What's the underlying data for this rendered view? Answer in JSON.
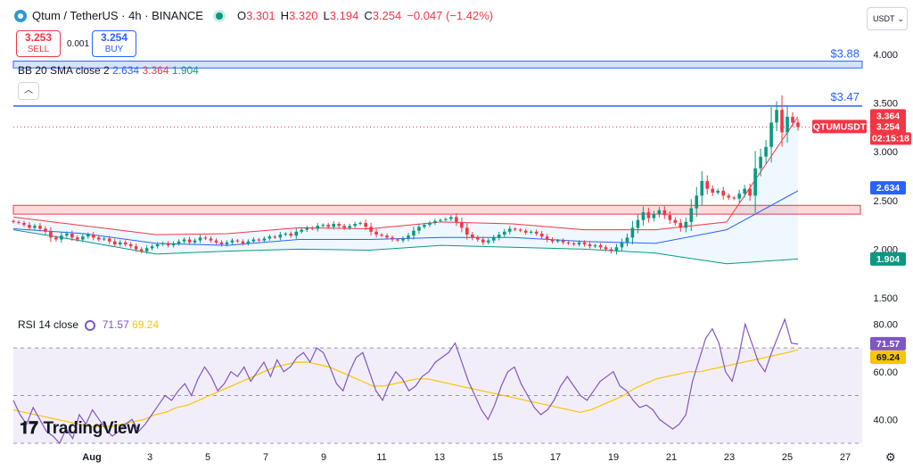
{
  "header": {
    "symbol": "Qtum / TetherUS · 4h · BINANCE",
    "o_label": "O",
    "o_value": "3.301",
    "h_label": "H",
    "h_value": "3.320",
    "l_label": "L",
    "l_value": "3.194",
    "c_label": "C",
    "c_value": "3.254",
    "change": "−0.047 (−1.42%)"
  },
  "trade": {
    "sell_price": "3.253",
    "sell_label": "SELL",
    "spread": "0.001",
    "buy_price": "3.254",
    "buy_label": "BUY"
  },
  "currency_button": "USDT",
  "bb_legend": {
    "name": "BB 20 SMA close 2",
    "basis": "2.634",
    "upper": "3.364",
    "lower": "1.904"
  },
  "rsi_legend": {
    "name": "RSI 14 close",
    "rsi": "71.57",
    "ma": "69.24"
  },
  "watermark": "TradingView",
  "colors": {
    "up": "#089981",
    "down": "#f23645",
    "bb_basis": "#2962ff",
    "bb_upper": "#f23645",
    "bb_lower": "#089981",
    "rsi": "#7e57c2",
    "rsi_ma": "#f7c600",
    "level_line": "#2962ff"
  },
  "chart_data": [
    {
      "type": "candlestick",
      "symbol": "QTUMUSDT",
      "ylim": [
        1.4,
        4.1
      ],
      "y_ticks": [
        "4.000",
        "3.500",
        "3.000",
        "2.500",
        "2.000",
        "1.500"
      ],
      "x_ticks": [
        "Aug",
        "3",
        "5",
        "7",
        "9",
        "11",
        "13",
        "15",
        "17",
        "19",
        "21",
        "23",
        "25",
        "27"
      ],
      "horizontal_levels": [
        {
          "label": "$3.88",
          "value": 3.88,
          "band": [
            3.86,
            3.93
          ]
        },
        {
          "label": "$3.47",
          "value": 3.47
        }
      ],
      "zone": [
        2.36,
        2.45
      ],
      "price_labels": [
        {
          "text": "3.364",
          "value": 3.364,
          "color": "#f23645"
        },
        {
          "text": "QTUMUSDT",
          "value": 3.254,
          "color": "#f23645"
        },
        {
          "text": "3.254",
          "value": 3.254,
          "color": "#f23645"
        },
        {
          "text": "02:15:18",
          "value": 3.254,
          "color": "#f23645"
        },
        {
          "text": "2.634",
          "value": 2.634,
          "color": "#2962ff"
        },
        {
          "text": "1.904",
          "value": 1.904,
          "color": "#089981"
        }
      ],
      "close_series": [
        2.28,
        2.27,
        2.25,
        2.22,
        2.24,
        2.21,
        2.18,
        2.12,
        2.1,
        2.14,
        2.16,
        2.12,
        2.1,
        2.13,
        2.15,
        2.12,
        2.1,
        2.11,
        2.08,
        2.05,
        2.07,
        2.05,
        2.03,
        2.0,
        1.98,
        2.01,
        2.03,
        2.05,
        2.06,
        2.04,
        2.06,
        2.08,
        2.1,
        2.07,
        2.09,
        2.12,
        2.11,
        2.09,
        2.07,
        2.05,
        2.07,
        2.09,
        2.08,
        2.06,
        2.08,
        2.1,
        2.09,
        2.11,
        2.13,
        2.12,
        2.15,
        2.16,
        2.14,
        2.18,
        2.2,
        2.22,
        2.21,
        2.24,
        2.25,
        2.23,
        2.26,
        2.24,
        2.22,
        2.24,
        2.26,
        2.27,
        2.23,
        2.18,
        2.15,
        2.14,
        2.12,
        2.1,
        2.09,
        2.11,
        2.14,
        2.19,
        2.23,
        2.25,
        2.27,
        2.29,
        2.3,
        2.31,
        2.33,
        2.28,
        2.22,
        2.15,
        2.12,
        2.1,
        2.07,
        2.09,
        2.12,
        2.15,
        2.18,
        2.21,
        2.2,
        2.19,
        2.17,
        2.18,
        2.16,
        2.13,
        2.1,
        2.08,
        2.09,
        2.07,
        2.06,
        2.05,
        2.07,
        2.05,
        2.03,
        2.04,
        2.02,
        2.0,
        1.98,
        2.02,
        2.07,
        2.12,
        2.22,
        2.3,
        2.38,
        2.32,
        2.36,
        2.4,
        2.35,
        2.3,
        2.27,
        2.22,
        2.28,
        2.42,
        2.55,
        2.7,
        2.62,
        2.58,
        2.6,
        2.55,
        2.53,
        2.52,
        2.57,
        2.62,
        2.55,
        2.83,
        2.95,
        3.05,
        3.3,
        3.43,
        3.2,
        3.36,
        3.3,
        3.254
      ],
      "bb_basis": [
        2.21,
        2.16,
        2.06,
        2.04,
        2.1,
        2.1,
        2.12,
        2.12,
        2.08,
        2.06,
        2.2,
        2.6
      ],
      "bb_upper": [
        2.33,
        2.24,
        2.15,
        2.16,
        2.22,
        2.21,
        2.28,
        2.26,
        2.2,
        2.2,
        2.28,
        3.36
      ],
      "bb_lower": [
        2.2,
        2.08,
        1.95,
        1.98,
        2.0,
        1.99,
        2.04,
        2.02,
        2.0,
        1.96,
        1.85,
        1.9
      ]
    },
    {
      "type": "line",
      "title": "RSI 14 close",
      "ylim": [
        30,
        85
      ],
      "y_ticks": [
        "80.00",
        "60.00",
        "40.00"
      ],
      "bands": [
        30,
        50,
        70
      ],
      "value_labels": [
        {
          "text": "71.57",
          "value": 71.57,
          "color": "#7e57c2"
        },
        {
          "text": "69.24",
          "value": 69.24,
          "color": "#f7c600"
        }
      ],
      "series": [
        {
          "name": "RSI",
          "values": [
            48,
            42,
            38,
            45,
            40,
            35,
            33,
            30,
            36,
            32,
            42,
            38,
            44,
            40,
            36,
            33,
            35,
            38,
            40,
            35,
            38,
            42,
            46,
            50,
            48,
            52,
            55,
            50,
            57,
            62,
            58,
            52,
            55,
            60,
            58,
            62,
            56,
            60,
            64,
            58,
            65,
            60,
            62,
            66,
            68,
            64,
            70,
            68,
            62,
            55,
            52,
            60,
            66,
            68,
            60,
            52,
            48,
            55,
            60,
            57,
            52,
            54,
            58,
            60,
            64,
            66,
            68,
            72,
            64,
            56,
            50,
            44,
            40,
            46,
            54,
            60,
            62,
            55,
            50,
            45,
            42,
            44,
            48,
            54,
            58,
            54,
            50,
            48,
            52,
            56,
            58,
            60,
            54,
            52,
            48,
            45,
            46,
            44,
            40,
            38,
            36,
            38,
            42,
            56,
            65,
            74,
            78,
            72,
            60,
            56,
            66,
            80,
            72,
            64,
            60,
            68,
            75,
            82,
            72,
            71.57
          ]
        },
        {
          "name": "RSI MA",
          "values": [
            44,
            43,
            42,
            41,
            40,
            39,
            38,
            37,
            37,
            37,
            38,
            39,
            40,
            42,
            43,
            45,
            46,
            48,
            50,
            52,
            54,
            56,
            58,
            60,
            62,
            63,
            64,
            64,
            63,
            62,
            60,
            58,
            56,
            54,
            54,
            55,
            56,
            57,
            57,
            56,
            55,
            54,
            53,
            52,
            51,
            50,
            49,
            48,
            47,
            46,
            45,
            44,
            43,
            44,
            46,
            48,
            50,
            53,
            55,
            57,
            58,
            59,
            60,
            60,
            61,
            62,
            63,
            64,
            65,
            66,
            67,
            68,
            69.24
          ]
        }
      ],
      "x_ticks": [
        "Aug",
        "3",
        "5",
        "7",
        "9",
        "11",
        "13",
        "15",
        "17",
        "19",
        "21",
        "23",
        "25",
        "27"
      ]
    }
  ]
}
